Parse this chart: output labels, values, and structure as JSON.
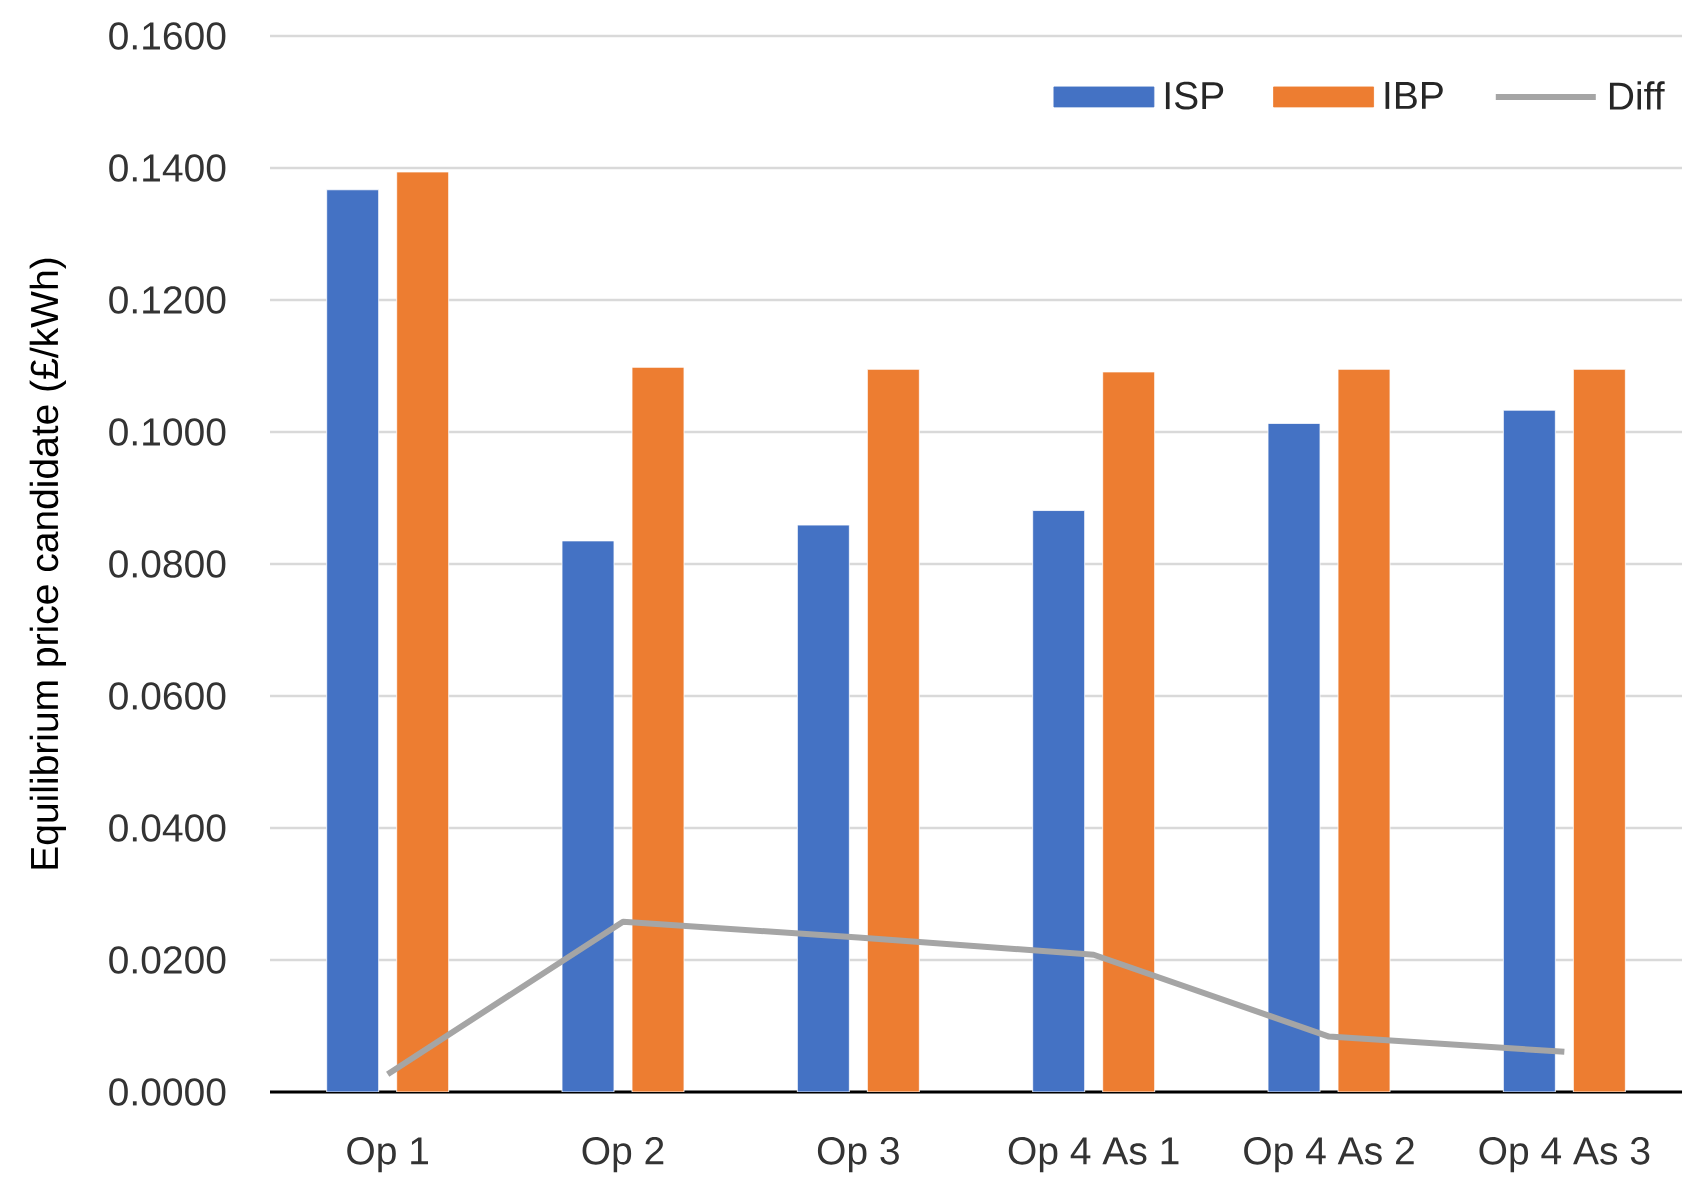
{
  "chart_data": {
    "type": "bar",
    "categories": [
      "Op 1",
      "Op 2",
      "Op 3",
      "Op 4 As 1",
      "Op 4 As 2",
      "Op 4 As 3"
    ],
    "ylabel": "Equilibrium price candidate (£/kWh)",
    "ylim": [
      0,
      0.16
    ],
    "yticks": [
      {
        "value": 0,
        "label": "0.0000"
      },
      {
        "value": 0.02,
        "label": "0.0200"
      },
      {
        "value": 0.04,
        "label": "0.0400"
      },
      {
        "value": 0.06,
        "label": "0.0600"
      },
      {
        "value": 0.08,
        "label": "0.0800"
      },
      {
        "value": 0.1,
        "label": "0.1000"
      },
      {
        "value": 0.12,
        "label": "0.1200"
      },
      {
        "value": 0.14,
        "label": "0.1400"
      },
      {
        "value": 0.16,
        "label": "0.1600"
      }
    ],
    "grid": "y",
    "legend": "top right",
    "series": [
      {
        "name": "ISP",
        "color": "#4472c4",
        "values": [
          0.1367,
          0.0835,
          0.0859,
          0.0881,
          0.1013,
          0.1033
        ]
      },
      {
        "name": "IBP",
        "color": "#ed7d31",
        "values": [
          0.1394,
          0.1098,
          0.1095,
          0.1091,
          0.1095,
          0.1095
        ]
      },
      {
        "name": "Diff",
        "type": "line",
        "color": "#a5a5a5",
        "marker": "none",
        "line_style": "solid",
        "values": [
          0.0027,
          0.0258,
          0.0234,
          0.0208,
          0.0084,
          0.0061
        ]
      }
    ]
  }
}
